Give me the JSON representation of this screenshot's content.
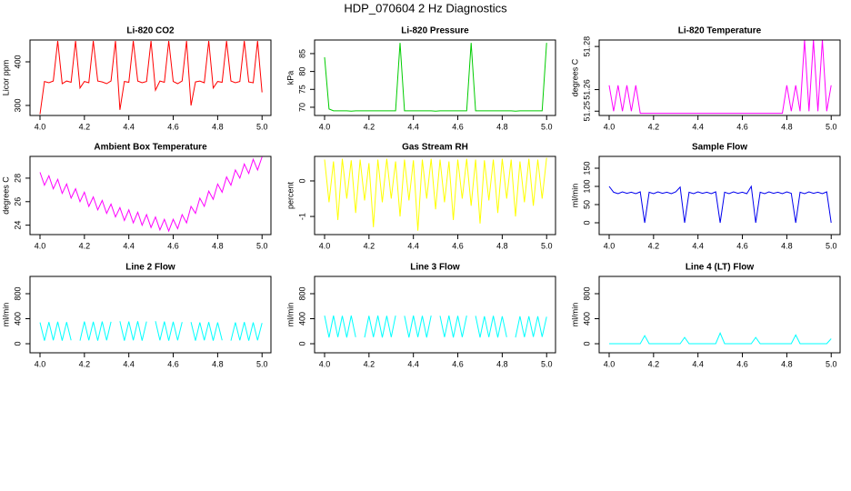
{
  "title": "HDP_070604 2 Hz Diagnostics",
  "chart_data": [
    {
      "type": "line",
      "title": "Li-820 CO2",
      "ylabel": "Licor ppm",
      "color": "#ff0000",
      "xlim": [
        3.955,
        5.04
      ],
      "xticks": [
        {
          "value": 4,
          "label": "4.0"
        },
        4.2,
        4.4,
        4.6,
        4.8,
        {
          "value": 5,
          "label": "5.0"
        }
      ],
      "ylim": [
        277,
        450
      ],
      "yticks": [
        300,
        400
      ],
      "x": [
        4,
        4.02,
        4.04,
        4.06,
        4.08,
        4.1,
        4.12,
        4.14,
        4.16,
        4.18,
        4.2,
        4.22,
        4.24,
        4.26,
        4.28,
        4.3,
        4.32,
        4.34,
        4.36,
        4.38,
        4.4,
        4.42,
        4.44,
        4.46,
        4.48,
        4.5,
        4.52,
        4.54,
        4.56,
        4.58,
        4.6,
        4.62,
        4.64,
        4.66,
        4.68,
        4.7,
        4.72,
        4.74,
        4.76,
        4.78,
        4.8,
        4.82,
        4.84,
        4.86,
        4.88,
        4.9,
        4.92,
        4.94,
        4.96,
        4.98,
        5
      ],
      "values": [
        280,
        355,
        352,
        356,
        448,
        350,
        356,
        353,
        448,
        340,
        355,
        352,
        448,
        356,
        354,
        350,
        356,
        448,
        290,
        355,
        353,
        448,
        356,
        352,
        355,
        448,
        335,
        356,
        353,
        448,
        355,
        350,
        356,
        448,
        300,
        354,
        356,
        352,
        448,
        340,
        355,
        353,
        448,
        356,
        352,
        355,
        448,
        354,
        352,
        448,
        330
      ]
    },
    {
      "type": "line",
      "title": "Li-820 Pressure",
      "ylabel": "kPa",
      "color": "#00cc00",
      "xlim": [
        3.955,
        5.04
      ],
      "xticks": [
        {
          "value": 4,
          "label": "4.0"
        },
        4.2,
        4.4,
        4.6,
        4.8,
        {
          "value": 5,
          "label": "5.0"
        }
      ],
      "ylim": [
        67.7,
        88.8
      ],
      "yticks": [
        70,
        75,
        80,
        85
      ],
      "x": [
        4,
        4.02,
        4.04,
        4.06,
        4.08,
        4.1,
        4.12,
        4.14,
        4.16,
        4.18,
        4.2,
        4.22,
        4.24,
        4.26,
        4.28,
        4.3,
        4.32,
        4.34,
        4.36,
        4.38,
        4.4,
        4.42,
        4.44,
        4.46,
        4.48,
        4.5,
        4.52,
        4.54,
        4.56,
        4.58,
        4.6,
        4.62,
        4.64,
        4.66,
        4.68,
        4.7,
        4.72,
        4.74,
        4.76,
        4.78,
        4.8,
        4.82,
        4.84,
        4.86,
        4.88,
        4.9,
        4.92,
        4.94,
        4.96,
        4.98,
        5
      ],
      "values": [
        84,
        69.5,
        69,
        69,
        69,
        69,
        68.9,
        69,
        69,
        69,
        69,
        69,
        69,
        69,
        69,
        69,
        69,
        88,
        69,
        69,
        69,
        69,
        69,
        69,
        69,
        68.9,
        69,
        69,
        69,
        69,
        69,
        69,
        69,
        88,
        69,
        69,
        69,
        69,
        69,
        69,
        69,
        69,
        69,
        68.9,
        69,
        69,
        69,
        69,
        69,
        69,
        88
      ]
    },
    {
      "type": "line",
      "title": "Li-820 Temperature",
      "ylabel": "degrees C",
      "color": "#ff00ff",
      "xlim": [
        3.955,
        5.04
      ],
      "xticks": [
        {
          "value": 4,
          "label": "4.0"
        },
        4.2,
        4.4,
        4.6,
        4.8,
        {
          "value": 5,
          "label": "5.0"
        }
      ],
      "ylim": [
        51.248,
        51.283
      ],
      "yticks": [
        51.25,
        51.26,
        51.28
      ],
      "x": [
        4,
        4.02,
        4.04,
        4.06,
        4.08,
        4.1,
        4.12,
        4.14,
        4.16,
        4.18,
        4.2,
        4.22,
        4.24,
        4.26,
        4.28,
        4.3,
        4.32,
        4.34,
        4.36,
        4.38,
        4.4,
        4.42,
        4.44,
        4.46,
        4.48,
        4.5,
        4.52,
        4.54,
        4.56,
        4.58,
        4.6,
        4.62,
        4.64,
        4.66,
        4.68,
        4.7,
        4.72,
        4.74,
        4.76,
        4.78,
        4.8,
        4.82,
        4.84,
        4.86,
        4.88,
        4.9,
        4.92,
        4.94,
        4.96,
        4.98,
        5
      ],
      "values": [
        51.262,
        51.25,
        51.262,
        51.25,
        51.262,
        51.25,
        51.262,
        51.249,
        51.249,
        51.249,
        51.249,
        51.249,
        51.249,
        51.249,
        51.249,
        51.249,
        51.249,
        51.249,
        51.249,
        51.249,
        51.249,
        51.249,
        51.249,
        51.249,
        51.249,
        51.249,
        51.249,
        51.249,
        51.249,
        51.249,
        51.249,
        51.249,
        51.249,
        51.249,
        51.249,
        51.249,
        51.249,
        51.249,
        51.249,
        51.249,
        51.262,
        51.25,
        51.262,
        51.25,
        51.283,
        51.25,
        51.283,
        51.25,
        51.283,
        51.25,
        51.262
      ]
    },
    {
      "type": "line",
      "title": "Ambient Box Temperature",
      "ylabel": "degrees C",
      "color": "#ff00ff",
      "xlim": [
        3.955,
        5.04
      ],
      "xticks": [
        {
          "value": 4,
          "label": "4.0"
        },
        4.2,
        4.4,
        4.6,
        4.8,
        {
          "value": 5,
          "label": "5.0"
        }
      ],
      "ylim": [
        23.2,
        29.85
      ],
      "yticks": [
        24,
        26,
        28
      ],
      "x": [
        4,
        4.02,
        4.04,
        4.06,
        4.08,
        4.1,
        4.12,
        4.14,
        4.16,
        4.18,
        4.2,
        4.22,
        4.24,
        4.26,
        4.28,
        4.3,
        4.32,
        4.34,
        4.36,
        4.38,
        4.4,
        4.42,
        4.44,
        4.46,
        4.48,
        4.5,
        4.52,
        4.54,
        4.56,
        4.58,
        4.6,
        4.62,
        4.64,
        4.66,
        4.68,
        4.7,
        4.72,
        4.74,
        4.76,
        4.78,
        4.8,
        4.82,
        4.84,
        4.86,
        4.88,
        4.9,
        4.92,
        4.94,
        4.96,
        4.98,
        5
      ],
      "values": [
        28.5,
        27.4,
        28.2,
        27.1,
        27.9,
        26.7,
        27.5,
        26.3,
        27.1,
        26.0,
        26.8,
        25.6,
        26.4,
        25.3,
        26.1,
        25.0,
        25.8,
        24.7,
        25.5,
        24.4,
        25.3,
        24.2,
        25.1,
        24.0,
        24.9,
        23.8,
        24.7,
        23.6,
        24.5,
        23.5,
        24.5,
        23.7,
        24.9,
        24.2,
        25.6,
        25.0,
        26.3,
        25.6,
        26.9,
        26.2,
        27.5,
        26.8,
        28.1,
        27.4,
        28.7,
        28.0,
        29.2,
        28.4,
        29.6,
        28.7,
        29.8
      ]
    },
    {
      "type": "line",
      "title": "Gas Stream RH",
      "ylabel": "percent",
      "color": "#ffff00",
      "xlim": [
        3.955,
        5.04
      ],
      "xticks": [
        {
          "value": 4,
          "label": "4.0"
        },
        4.2,
        4.4,
        4.6,
        4.8,
        {
          "value": 5,
          "label": "5.0"
        }
      ],
      "ylim": [
        -1.51,
        0.69
      ],
      "yticks": [
        -1,
        0
      ],
      "x": [
        4,
        4.02,
        4.04,
        4.06,
        4.08,
        4.1,
        4.12,
        4.14,
        4.16,
        4.18,
        4.2,
        4.22,
        4.24,
        4.26,
        4.28,
        4.3,
        4.32,
        4.34,
        4.36,
        4.38,
        4.4,
        4.42,
        4.44,
        4.46,
        4.48,
        4.5,
        4.52,
        4.54,
        4.56,
        4.58,
        4.6,
        4.62,
        4.64,
        4.66,
        4.68,
        4.7,
        4.72,
        4.74,
        4.76,
        4.78,
        4.8,
        4.82,
        4.84,
        4.86,
        4.88,
        4.9,
        4.92,
        4.94,
        4.96,
        4.98,
        5
      ],
      "values": [
        0.6,
        -0.6,
        0.55,
        -1.1,
        0.62,
        -0.5,
        0.58,
        -0.9,
        0.6,
        -0.55,
        0.5,
        -1.3,
        0.6,
        -0.6,
        0.62,
        -0.5,
        0.55,
        -1.0,
        0.6,
        -0.55,
        0.58,
        -1.4,
        0.6,
        -0.5,
        0.62,
        -0.8,
        0.6,
        -0.6,
        0.55,
        -1.1,
        0.6,
        -0.5,
        0.62,
        -0.7,
        0.6,
        -1.2,
        0.58,
        -0.55,
        0.6,
        -0.9,
        0.62,
        -0.5,
        0.6,
        -1.0,
        0.55,
        -0.6,
        0.62,
        -0.7,
        0.6,
        -0.5,
        0.65
      ]
    },
    {
      "type": "line",
      "title": "Sample Flow",
      "ylabel": "ml/min",
      "color": "#0000ee",
      "xlim": [
        3.955,
        5.04
      ],
      "xticks": [
        {
          "value": 4,
          "label": "4.0"
        },
        4.2,
        4.4,
        4.6,
        4.8,
        {
          "value": 5,
          "label": "5.0"
        }
      ],
      "ylim": [
        -32.5,
        182.5
      ],
      "yticks": [
        0,
        50,
        100,
        150
      ],
      "x": [
        4,
        4.02,
        4.04,
        4.06,
        4.08,
        4.1,
        4.12,
        4.14,
        4.16,
        4.18,
        4.2,
        4.22,
        4.24,
        4.26,
        4.28,
        4.3,
        4.32,
        4.34,
        4.36,
        4.38,
        4.4,
        4.42,
        4.44,
        4.46,
        4.48,
        4.5,
        4.52,
        4.54,
        4.56,
        4.58,
        4.6,
        4.62,
        4.64,
        4.66,
        4.68,
        4.7,
        4.72,
        4.74,
        4.76,
        4.78,
        4.8,
        4.82,
        4.84,
        4.86,
        4.88,
        4.9,
        4.92,
        4.94,
        4.96,
        4.98,
        5
      ],
      "values": [
        100,
        84,
        80,
        85,
        81,
        84,
        80,
        85,
        0,
        84,
        80,
        85,
        81,
        84,
        80,
        85,
        98,
        0,
        84,
        80,
        85,
        81,
        84,
        80,
        85,
        0,
        84,
        80,
        85,
        81,
        84,
        80,
        100,
        0,
        84,
        80,
        85,
        81,
        84,
        80,
        85,
        81,
        0,
        84,
        80,
        85,
        81,
        84,
        80,
        85,
        0
      ]
    },
    {
      "type": "line",
      "title": "Line 2 Flow",
      "ylabel": "ml/min",
      "color": "#00ffff",
      "xlim": [
        3.955,
        5.04
      ],
      "xticks": [
        {
          "value": 4,
          "label": "4.0"
        },
        4.2,
        4.4,
        4.6,
        4.8,
        {
          "value": 5,
          "label": "5.0"
        }
      ],
      "ylim": [
        -145,
        1076
      ],
      "yticks": [
        0,
        400,
        800
      ],
      "x": [
        4,
        4.02,
        4.04,
        4.06,
        4.08,
        4.1,
        4.12,
        4.14,
        4.16,
        4.18,
        4.2,
        4.22,
        4.24,
        4.26,
        4.28,
        4.3,
        4.32,
        4.34,
        4.36,
        4.38,
        4.4,
        4.42,
        4.44,
        4.46,
        4.48,
        4.5,
        4.52,
        4.54,
        4.56,
        4.58,
        4.6,
        4.62,
        4.64,
        4.66,
        4.68,
        4.7,
        4.72,
        4.74,
        4.76,
        4.78,
        4.8,
        4.82,
        4.84,
        4.86,
        4.88,
        4.9,
        4.92,
        4.94,
        4.96,
        4.98,
        5
      ],
      "values": [
        340,
        50,
        345,
        55,
        350,
        50,
        345,
        55,
        null,
        50,
        355,
        55,
        350,
        50,
        355,
        55,
        350,
        null,
        360,
        50,
        355,
        55,
        360,
        50,
        355,
        null,
        360,
        55,
        355,
        50,
        350,
        55,
        345,
        null,
        345,
        50,
        340,
        55,
        345,
        50,
        340,
        55,
        null,
        50,
        340,
        55,
        345,
        50,
        340,
        55,
        330
      ]
    },
    {
      "type": "line",
      "title": "Line 3 Flow",
      "ylabel": "ml/min",
      "color": "#00ffff",
      "xlim": [
        3.955,
        5.04
      ],
      "xticks": [
        {
          "value": 4,
          "label": "4.0"
        },
        4.2,
        4.4,
        4.6,
        4.8,
        {
          "value": 5,
          "label": "5.0"
        }
      ],
      "ylim": [
        -145,
        1076
      ],
      "yticks": [
        0,
        400,
        800
      ],
      "x": [
        4,
        4.02,
        4.04,
        4.06,
        4.08,
        4.1,
        4.12,
        4.14,
        4.16,
        4.18,
        4.2,
        4.22,
        4.24,
        4.26,
        4.28,
        4.3,
        4.32,
        4.34,
        4.36,
        4.38,
        4.4,
        4.42,
        4.44,
        4.46,
        4.48,
        4.5,
        4.52,
        4.54,
        4.56,
        4.58,
        4.6,
        4.62,
        4.64,
        4.66,
        4.68,
        4.7,
        4.72,
        4.74,
        4.76,
        4.78,
        4.8,
        4.82,
        4.84,
        4.86,
        4.88,
        4.9,
        4.92,
        4.94,
        4.96,
        4.98,
        5
      ],
      "values": [
        450,
        100,
        450,
        105,
        445,
        100,
        450,
        105,
        null,
        100,
        445,
        105,
        450,
        100,
        445,
        105,
        450,
        null,
        445,
        100,
        450,
        105,
        445,
        100,
        450,
        null,
        445,
        105,
        450,
        100,
        445,
        105,
        450,
        null,
        445,
        100,
        440,
        105,
        445,
        100,
        440,
        105,
        null,
        100,
        440,
        105,
        440,
        110,
        440,
        110,
        430
      ]
    },
    {
      "type": "line",
      "title": "Line 4 (LT) Flow",
      "ylabel": "ml/min",
      "color": "#00ffff",
      "xlim": [
        3.955,
        5.04
      ],
      "xticks": [
        {
          "value": 4,
          "label": "4.0"
        },
        4.2,
        4.4,
        4.6,
        4.8,
        {
          "value": 5,
          "label": "5.0"
        }
      ],
      "ylim": [
        -145,
        1076
      ],
      "yticks": [
        0,
        400,
        800
      ],
      "x": [
        4,
        4.02,
        4.04,
        4.06,
        4.08,
        4.1,
        4.12,
        4.14,
        4.16,
        4.18,
        4.2,
        4.22,
        4.24,
        4.26,
        4.28,
        4.3,
        4.32,
        4.34,
        4.36,
        4.38,
        4.4,
        4.42,
        4.44,
        4.46,
        4.48,
        4.5,
        4.52,
        4.54,
        4.56,
        4.58,
        4.6,
        4.62,
        4.64,
        4.66,
        4.68,
        4.7,
        4.72,
        4.74,
        4.76,
        4.78,
        4.8,
        4.82,
        4.84,
        4.86,
        4.88,
        4.9,
        4.92,
        4.94,
        4.96,
        4.98,
        5
      ],
      "values": [
        0,
        0,
        0,
        0,
        0,
        0,
        0,
        0,
        130,
        0,
        0,
        0,
        0,
        0,
        0,
        0,
        0,
        100,
        0,
        0,
        0,
        0,
        0,
        0,
        0,
        170,
        0,
        0,
        0,
        0,
        0,
        0,
        0,
        100,
        0,
        0,
        0,
        0,
        0,
        0,
        0,
        0,
        140,
        0,
        0,
        0,
        0,
        0,
        0,
        0,
        80
      ]
    }
  ]
}
